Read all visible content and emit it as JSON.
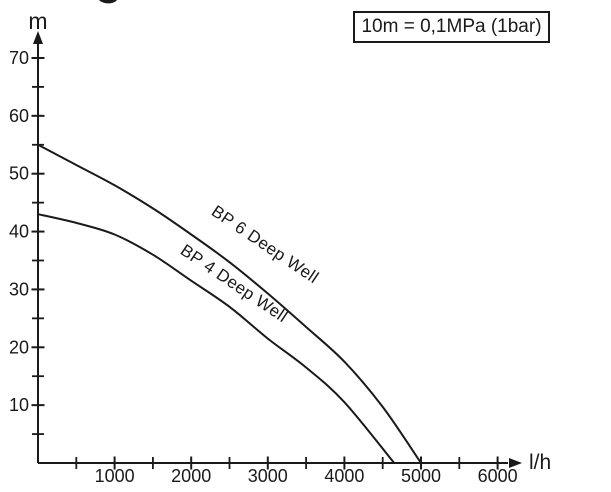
{
  "annotation_box": {
    "text": "10m = 0,1MPa (1bar)"
  },
  "colors": {
    "ink": "#1a1a1a",
    "background": "#ffffff"
  },
  "chart_data": {
    "type": "line",
    "title": "",
    "xlabel": "l/h",
    "ylabel": "m",
    "xlim": [
      0,
      6800
    ],
    "ylim": [
      0,
      74
    ],
    "grid": false,
    "legend_position": "labels-on-curves",
    "annotation": "10m = 0,1MPa (1bar)",
    "x_major_ticks": [
      {
        "value": 1000,
        "label": "1000"
      },
      {
        "value": 2000,
        "label": "2000"
      },
      {
        "value": 3000,
        "label": "3000"
      },
      {
        "value": 4000,
        "label": "4000"
      },
      {
        "value": 5000,
        "label": "5000"
      },
      {
        "value": 6000,
        "label": "6000"
      }
    ],
    "x_minor_ticks": [
      500,
      1500,
      2500,
      3500,
      4500,
      5500
    ],
    "y_major_ticks": [
      {
        "value": 10,
        "label": "10"
      },
      {
        "value": 20,
        "label": "20"
      },
      {
        "value": 30,
        "label": "30"
      },
      {
        "value": 40,
        "label": "40"
      },
      {
        "value": 50,
        "label": "50"
      },
      {
        "value": 60,
        "label": "60"
      },
      {
        "value": 70,
        "label": "70"
      }
    ],
    "y_minor_ticks": [
      5,
      15,
      25,
      35,
      45,
      55,
      65
    ],
    "series": [
      {
        "name": "BP 6 Deep Well",
        "points": [
          [
            0,
            55
          ],
          [
            500,
            51.5
          ],
          [
            1000,
            48
          ],
          [
            1500,
            44
          ],
          [
            2000,
            39.5
          ],
          [
            2500,
            34.7
          ],
          [
            3000,
            29.3
          ],
          [
            3500,
            23.5
          ],
          [
            4000,
            17.5
          ],
          [
            4500,
            9.7
          ],
          [
            5000,
            0
          ]
        ]
      },
      {
        "name": "BP 4 Deep Well",
        "points": [
          [
            0,
            43
          ],
          [
            500,
            41.5
          ],
          [
            1000,
            39.5
          ],
          [
            1500,
            36
          ],
          [
            2000,
            31.5
          ],
          [
            2500,
            27
          ],
          [
            3000,
            21.5
          ],
          [
            3500,
            16.5
          ],
          [
            4000,
            10.5
          ],
          [
            4650,
            0
          ]
        ]
      }
    ]
  }
}
